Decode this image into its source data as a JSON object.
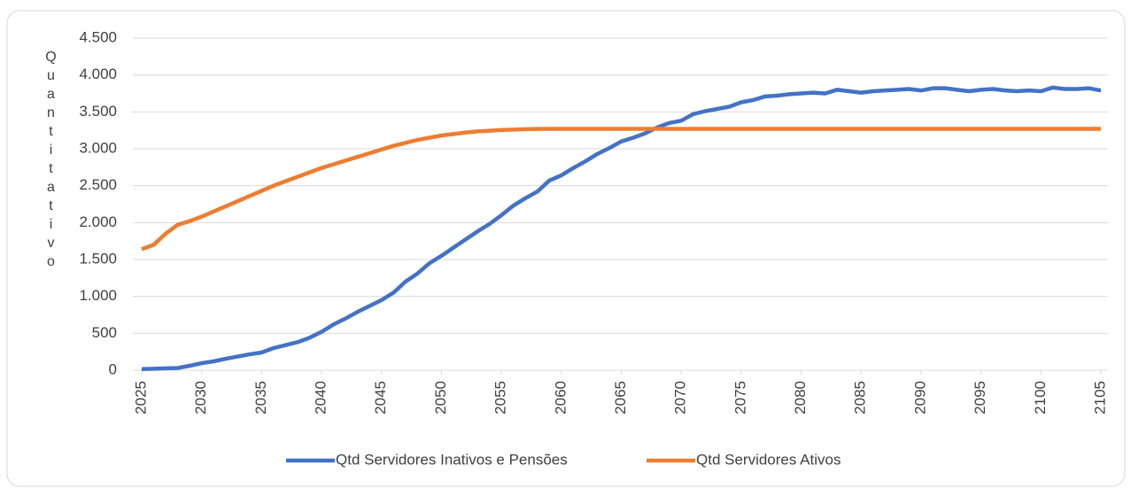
{
  "chart_data": {
    "type": "line",
    "y_label": "Quantitativo",
    "x": [
      2025,
      2026,
      2027,
      2028,
      2029,
      2030,
      2031,
      2032,
      2033,
      2034,
      2035,
      2036,
      2037,
      2038,
      2039,
      2040,
      2041,
      2042,
      2043,
      2044,
      2045,
      2046,
      2047,
      2048,
      2049,
      2050,
      2051,
      2052,
      2053,
      2054,
      2055,
      2056,
      2057,
      2058,
      2059,
      2060,
      2061,
      2062,
      2063,
      2064,
      2065,
      2066,
      2067,
      2068,
      2069,
      2070,
      2071,
      2072,
      2073,
      2074,
      2075,
      2076,
      2077,
      2078,
      2079,
      2080,
      2081,
      2082,
      2083,
      2084,
      2085,
      2086,
      2087,
      2088,
      2089,
      2090,
      2091,
      2092,
      2093,
      2094,
      2095,
      2096,
      2097,
      2098,
      2099,
      2100,
      2101,
      2102,
      2103,
      2104,
      2105
    ],
    "series": [
      {
        "name": "Qtd Servidores Inativos e Pensões",
        "color": "#4472c4",
        "values": [
          15,
          20,
          25,
          30,
          60,
          95,
          120,
          155,
          185,
          215,
          240,
          300,
          340,
          380,
          440,
          520,
          620,
          700,
          790,
          870,
          950,
          1050,
          1200,
          1310,
          1450,
          1550,
          1660,
          1770,
          1880,
          1980,
          2100,
          2230,
          2330,
          2420,
          2570,
          2640,
          2740,
          2830,
          2930,
          3010,
          3100,
          3150,
          3210,
          3290,
          3350,
          3380,
          3470,
          3510,
          3540,
          3570,
          3630,
          3660,
          3710,
          3720,
          3740,
          3750,
          3760,
          3750,
          3800,
          3780,
          3760,
          3780,
          3790,
          3800,
          3810,
          3790,
          3820,
          3820,
          3800,
          3780,
          3800,
          3810,
          3790,
          3780,
          3790,
          3780,
          3830,
          3810,
          3810,
          3820,
          3790
        ]
      },
      {
        "name": "Qtd Servidores Ativos",
        "color": "#ed7d31",
        "values": [
          1640,
          1700,
          1850,
          1970,
          2020,
          2080,
          2150,
          2220,
          2290,
          2360,
          2430,
          2500,
          2560,
          2620,
          2680,
          2740,
          2790,
          2840,
          2890,
          2940,
          2990,
          3040,
          3080,
          3120,
          3150,
          3180,
          3200,
          3220,
          3235,
          3245,
          3255,
          3260,
          3265,
          3268,
          3270,
          3270,
          3270,
          3270,
          3270,
          3270,
          3270,
          3270,
          3270,
          3270,
          3270,
          3270,
          3270,
          3270,
          3270,
          3270,
          3270,
          3270,
          3270,
          3270,
          3270,
          3270,
          3270,
          3270,
          3270,
          3270,
          3270,
          3270,
          3270,
          3270,
          3270,
          3270,
          3270,
          3270,
          3270,
          3270,
          3270,
          3270,
          3270,
          3270,
          3270,
          3270,
          3270,
          3270,
          3270,
          3270,
          3270
        ]
      }
    ],
    "xlim": [
      2025,
      2105
    ],
    "xticks": [
      2025,
      2030,
      2035,
      2040,
      2045,
      2050,
      2055,
      2060,
      2065,
      2070,
      2075,
      2080,
      2085,
      2090,
      2095,
      2100,
      2105
    ],
    "ylim": [
      0,
      4500
    ],
    "yticks": [
      0,
      500,
      {
        "value": 1000,
        "label": "1.000"
      },
      {
        "value": 1500,
        "label": "1.500"
      },
      {
        "value": 2000,
        "label": "2.000"
      },
      {
        "value": 2500,
        "label": "2.500"
      },
      {
        "value": 3000,
        "label": "3.000"
      },
      {
        "value": 3500,
        "label": "3.500"
      },
      {
        "value": 4000,
        "label": "4.000"
      },
      {
        "value": 4500,
        "label": "4.500"
      }
    ],
    "grid": true,
    "legend": "bottom"
  }
}
